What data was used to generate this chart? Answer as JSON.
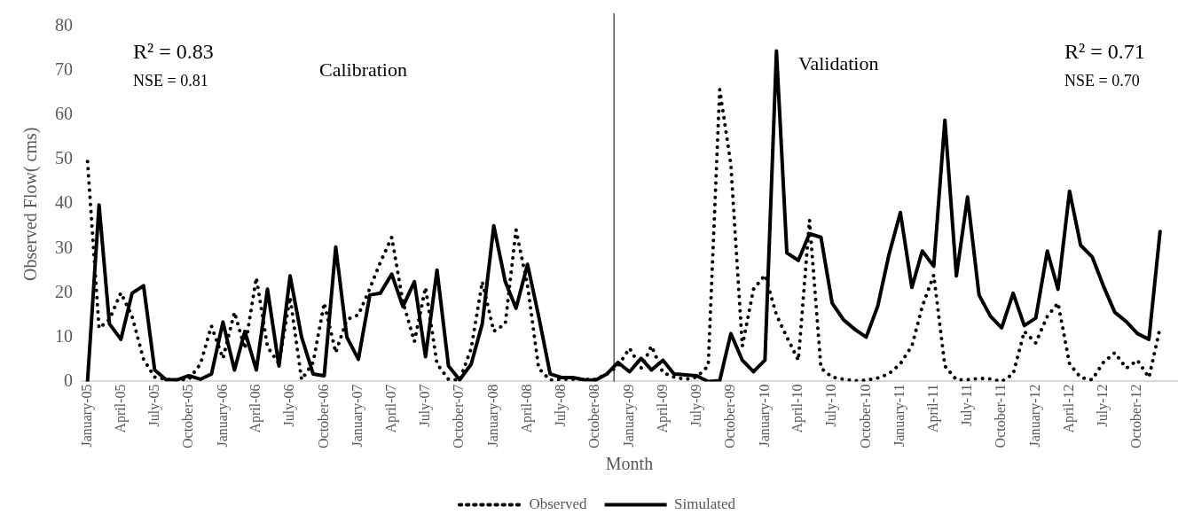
{
  "chart_data": {
    "type": "line",
    "xlabel": "Month",
    "ylabel": "Observed Flow( cms)",
    "x": [
      "2005-01",
      "2005-02",
      "2005-03",
      "2005-04",
      "2005-05",
      "2005-06",
      "2005-07",
      "2005-08",
      "2005-09",
      "2005-10",
      "2005-11",
      "2005-12",
      "2006-01",
      "2006-02",
      "2006-03",
      "2006-04",
      "2006-05",
      "2006-06",
      "2006-07",
      "2006-08",
      "2006-09",
      "2006-10",
      "2006-11",
      "2006-12",
      "2007-01",
      "2007-02",
      "2007-03",
      "2007-04",
      "2007-05",
      "2007-06",
      "2007-07",
      "2007-08",
      "2007-09",
      "2007-10",
      "2007-11",
      "2007-12",
      "2008-01",
      "2008-02",
      "2008-03",
      "2008-04",
      "2008-05",
      "2008-06",
      "2008-07",
      "2008-08",
      "2008-09",
      "2008-10",
      "2008-11",
      "2008-12",
      "2009-01",
      "2009-02",
      "2009-03",
      "2009-04",
      "2009-05",
      "2009-06",
      "2009-07",
      "2009-08",
      "2009-09",
      "2009-10",
      "2009-11",
      "2009-12",
      "2010-01",
      "2010-02",
      "2010-03",
      "2010-04",
      "2010-05",
      "2010-06",
      "2010-07",
      "2010-08",
      "2010-09",
      "2010-10",
      "2010-11",
      "2010-12",
      "2011-01",
      "2011-02",
      "2011-03",
      "2011-04",
      "2011-05",
      "2011-06",
      "2011-07",
      "2011-08",
      "2011-09",
      "2011-10",
      "2011-11",
      "2011-12",
      "2012-01",
      "2012-02",
      "2012-03",
      "2012-04",
      "2012-05",
      "2012-06",
      "2012-07",
      "2012-08",
      "2012-09",
      "2012-10",
      "2012-11",
      "2012-12"
    ],
    "series": [
      {
        "name": "Observed",
        "color": "#000000",
        "line_style": "dotted",
        "values": [
          49.6,
          12,
          14,
          20,
          14.7,
          5,
          1,
          0.5,
          0.3,
          0.5,
          3.9,
          12.5,
          5.2,
          15.6,
          7.4,
          23.4,
          7.8,
          4,
          19,
          0.4,
          4.3,
          17.7,
          6.5,
          14,
          15,
          21,
          26.8,
          32.5,
          18,
          9,
          21.2,
          4,
          0.5,
          0.3,
          7.4,
          22.5,
          11.3,
          13,
          34.2,
          21.6,
          3,
          0.3,
          0.5,
          0.5,
          0.5,
          0.5,
          1.7,
          3.5,
          7.5,
          3,
          8,
          2,
          1,
          0.5,
          1,
          3.5,
          65.8,
          49,
          8,
          20.8,
          24,
          15,
          10,
          4.8,
          36.4,
          3,
          1,
          0.5,
          0.2,
          0.3,
          0.8,
          1.7,
          4,
          8,
          16.9,
          24,
          3.5,
          0.4,
          0.4,
          0.7,
          0.6,
          0,
          1.7,
          11.3,
          8.7,
          14.7,
          17.7,
          4,
          0.9,
          0.4,
          4.3,
          6.5,
          3,
          4.8,
          0.9,
          12.1
        ]
      },
      {
        "name": "Simulated",
        "color": "#000000",
        "line_style": "solid",
        "values": [
          0,
          39.8,
          13,
          9.5,
          19.9,
          21.6,
          2.6,
          0.4,
          0.4,
          1.3,
          0.5,
          1.7,
          13.4,
          2.6,
          11.3,
          2.6,
          20.8,
          3.5,
          23.8,
          10,
          1.7,
          1.3,
          30.3,
          10,
          5,
          19.5,
          19.9,
          24.2,
          16.9,
          22.5,
          5.6,
          25.1,
          3.5,
          0.4,
          3.9,
          13,
          35.1,
          22.5,
          16.5,
          26.4,
          14.7,
          1.7,
          0.9,
          0.9,
          0.4,
          0.3,
          1.7,
          4.3,
          2.2,
          5.2,
          2.6,
          4.8,
          1.7,
          1.5,
          1.3,
          0,
          0.2,
          10.8,
          4.8,
          2.2,
          4.8,
          74.5,
          29,
          27.3,
          33.3,
          32.5,
          17.7,
          13.9,
          11.7,
          10,
          17,
          28.5,
          38.1,
          21.2,
          29.4,
          26,
          58.9,
          23.8,
          41.6,
          19.5,
          14.7,
          12.1,
          19.9,
          12.6,
          14.3,
          29.4,
          20.8,
          42.9,
          30.7,
          28.1,
          21.6,
          15.6,
          13.5,
          10.8,
          9.5,
          33.8
        ]
      }
    ],
    "xlim": [
      "2004-12-16",
      "2013-01-16"
    ],
    "xticks": [
      {
        "value": "2005-01",
        "label": "January-05"
      },
      {
        "value": "2005-04",
        "label": "April-05"
      },
      {
        "value": "2005-07",
        "label": "July-05"
      },
      {
        "value": "2005-10",
        "label": "October-05"
      },
      {
        "value": "2006-01",
        "label": "January-06"
      },
      {
        "value": "2006-04",
        "label": "April-06"
      },
      {
        "value": "2006-07",
        "label": "July-06"
      },
      {
        "value": "2006-10",
        "label": "October-06"
      },
      {
        "value": "2007-01",
        "label": "January-07"
      },
      {
        "value": "2007-04",
        "label": "April-07"
      },
      {
        "value": "2007-07",
        "label": "July-07"
      },
      {
        "value": "2007-10",
        "label": "October-07"
      },
      {
        "value": "2008-01",
        "label": "January-08"
      },
      {
        "value": "2008-04",
        "label": "April-08"
      },
      {
        "value": "2008-07",
        "label": "July-08"
      },
      {
        "value": "2008-10",
        "label": "October-08"
      },
      {
        "value": "2009-01",
        "label": "January-09"
      },
      {
        "value": "2009-04",
        "label": "April-09"
      },
      {
        "value": "2009-07",
        "label": "July-09"
      },
      {
        "value": "2009-10",
        "label": "October-09"
      },
      {
        "value": "2010-01",
        "label": "January-10"
      },
      {
        "value": "2010-04",
        "label": "April-10"
      },
      {
        "value": "2010-07",
        "label": "July-10"
      },
      {
        "value": "2010-10",
        "label": "October-10"
      },
      {
        "value": "2011-01",
        "label": "January-11"
      },
      {
        "value": "2011-04",
        "label": "April-11"
      },
      {
        "value": "2011-07",
        "label": "July-11"
      },
      {
        "value": "2011-10",
        "label": "October-11"
      },
      {
        "value": "2012-01",
        "label": "January-12"
      },
      {
        "value": "2012-04",
        "label": "April-12"
      },
      {
        "value": "2012-07",
        "label": "July-12"
      },
      {
        "value": "2012-10",
        "label": "October-12"
      }
    ],
    "ylim": [
      0,
      80
    ],
    "yticks": [
      0,
      10,
      20,
      30,
      40,
      50,
      60,
      70,
      80
    ],
    "grid": false,
    "legend": "bottom",
    "marker": "none",
    "ref_lines": [
      {
        "axis": "x",
        "value": "2008-11-20",
        "color": "#000000"
      }
    ],
    "annotations": [
      "R² = 0.83",
      "NSE = 0.81",
      "Calibration",
      "Validation",
      "R² = 0.71",
      "NSE = 0.70"
    ]
  }
}
